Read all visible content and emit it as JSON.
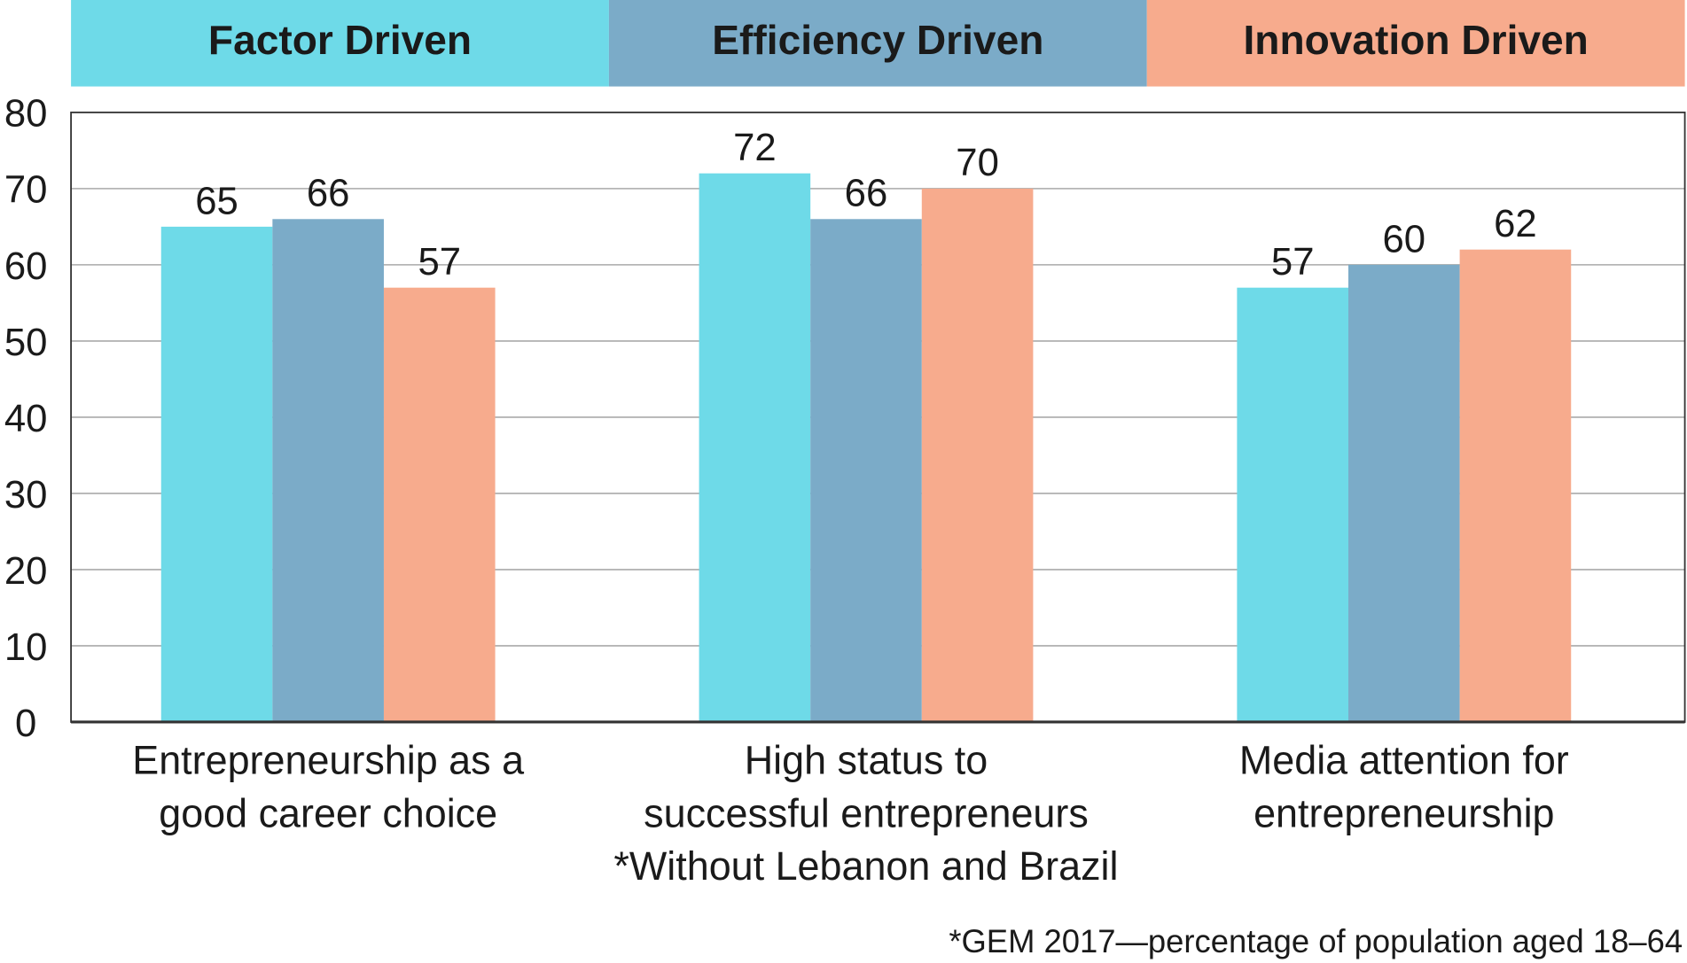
{
  "chart_data": {
    "type": "bar",
    "categories": [
      [
        "Entrepreneurship as a",
        "good career choice"
      ],
      [
        "High status to",
        "successful entrepreneurs",
        "*Without Lebanon and Brazil"
      ],
      [
        "Media attention for",
        "entrepreneurship"
      ]
    ],
    "series": [
      {
        "name": "Factor Driven",
        "color": "#6EDAE8",
        "values": [
          65,
          72,
          57
        ]
      },
      {
        "name": "Efficiency Driven",
        "color": "#7BABC8",
        "values": [
          66,
          66,
          60
        ]
      },
      {
        "name": "Innovation Driven",
        "color": "#F7AB8D",
        "values": [
          57,
          70,
          62
        ]
      }
    ],
    "ylim": [
      0,
      80
    ],
    "yticks": [
      0,
      10,
      20,
      30,
      40,
      50,
      60,
      70,
      80
    ],
    "grid": true,
    "legend_placement": "top",
    "footnote": "*GEM 2017—percentage of population aged 18–64"
  }
}
